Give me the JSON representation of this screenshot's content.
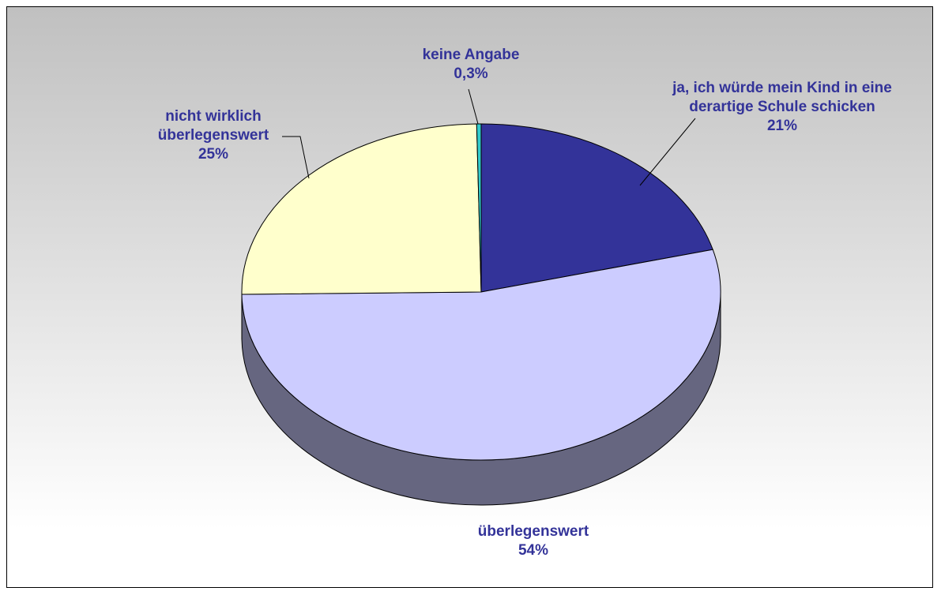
{
  "chart_data": {
    "type": "pie",
    "categories": [
      "ja, ich würde mein Kind in eine derartige Schule schicken",
      "überlegenswert",
      "nicht wirklich überlegenswert",
      "keine Angabe"
    ],
    "values": [
      21,
      54,
      25,
      0.3
    ],
    "value_labels": [
      "21%",
      "54%",
      "25%",
      "0,3%"
    ],
    "colors": [
      "#333399",
      "#ccccff",
      "#ffffcc",
      "#33cccc"
    ]
  }
}
